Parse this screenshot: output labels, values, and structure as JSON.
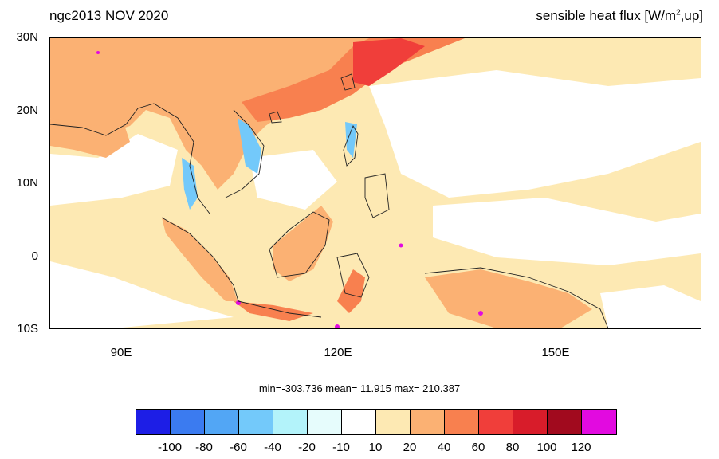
{
  "title_left": "ngc2013 NOV 2020",
  "title_right": {
    "prefix": "sensible heat flux [W/m",
    "sup": "2",
    "suffix": ",up]"
  },
  "lat_labels": [
    "30N",
    "20N",
    "10N",
    "0",
    "10S"
  ],
  "lon_labels": [
    "90E",
    "120E",
    "150E"
  ],
  "stats_text": "min=-303.736  mean=  11.915  max= 210.387",
  "colorbar": {
    "colors": [
      "#1d1ee6",
      "#3b7bf0",
      "#52a6f5",
      "#73c9fa",
      "#b3f3fa",
      "#e6fcfc",
      "#ffffff",
      "#fde9b3",
      "#fbb173",
      "#f8804f",
      "#f03e3a",
      "#d81c2a",
      "#a10a1e",
      "#e20ae0"
    ],
    "labels": [
      "-100",
      "-80",
      "-60",
      "-40",
      "-20",
      "-10",
      "10",
      "20",
      "40",
      "60",
      "80",
      "100",
      "120"
    ]
  },
  "fill_colors": {
    "ocean": "#ffffff",
    "light": "#fde9b3",
    "orange": "#fbb173",
    "red": "#f8804f",
    "strong": "#f03e3a",
    "cool": "#73c9fa",
    "magenta": "#e20ae0"
  }
}
